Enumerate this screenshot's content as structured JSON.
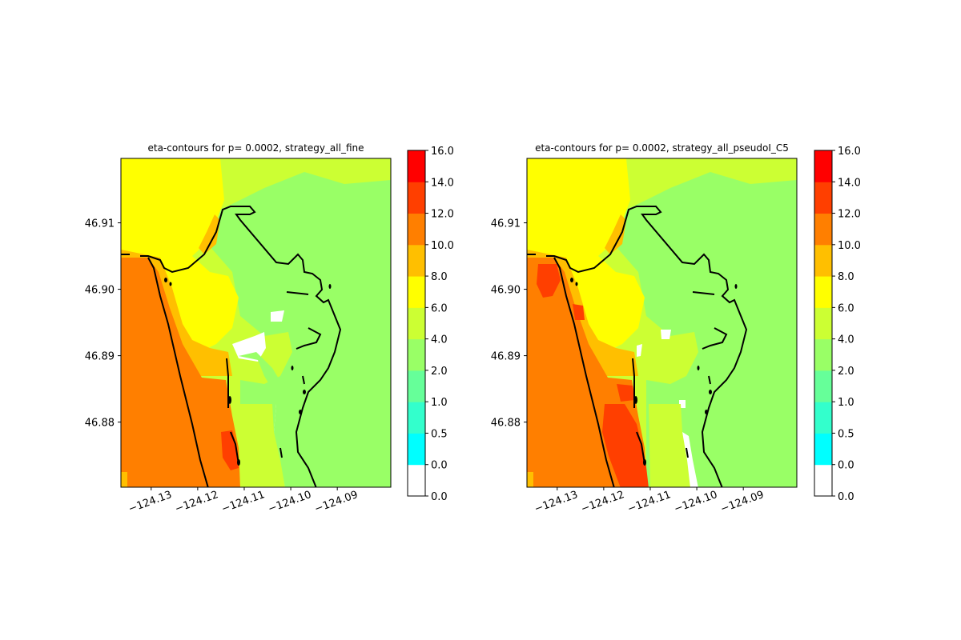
{
  "figure": {
    "colorbar": {
      "levels": [
        0.0,
        0.5,
        1.0,
        2.0,
        4.0,
        6.0,
        8.0,
        10.0,
        12.0,
        14.0,
        16.0
      ],
      "tick_labels": [
        "0.0",
        "0.0",
        "0.5",
        "1.0",
        "2.0",
        "4.0",
        "6.0",
        "8.0",
        "10.0",
        "12.0",
        "14.0",
        "16.0"
      ],
      "colors": [
        "#ffffff",
        "#00ffff",
        "#33ffcc",
        "#66ff99",
        "#99ff66",
        "#ccff33",
        "#ffff00",
        "#ffbf00",
        "#ff7f00",
        "#ff3f00",
        "#ff0000"
      ]
    }
  },
  "chart_data": [
    {
      "type": "heatmap",
      "title": "eta-contours for p= 0.0002, strategy_all_fine",
      "xlabel": "",
      "ylabel": "",
      "xlim": [
        -124.1365,
        -124.0785
      ],
      "ylim": [
        46.8702,
        46.9197
      ],
      "x_ticks": [
        -124.13,
        -124.12,
        -124.11,
        -124.1,
        -124.09
      ],
      "x_tick_labels": [
        "−124.13",
        "−124.12",
        "−124.11",
        "−124.10",
        "−124.09"
      ],
      "y_ticks": [
        46.88,
        46.89,
        46.9,
        46.91
      ],
      "y_tick_labels": [
        "46.88",
        "46.89",
        "46.90",
        "46.91"
      ],
      "grid": false,
      "colorbar_label": "",
      "variant": "fine"
    },
    {
      "type": "heatmap",
      "title": "eta-contours for p= 0.0002, strategy_all_pseudoI_C5",
      "xlabel": "",
      "ylabel": "",
      "xlim": [
        -124.1365,
        -124.0785
      ],
      "ylim": [
        46.8702,
        46.9197
      ],
      "x_ticks": [
        -124.13,
        -124.12,
        -124.11,
        -124.1,
        -124.09
      ],
      "x_tick_labels": [
        "−124.13",
        "−124.12",
        "−124.11",
        "−124.10",
        "−124.09"
      ],
      "y_ticks": [
        46.88,
        46.89,
        46.9,
        46.91
      ],
      "y_tick_labels": [
        "46.88",
        "46.89",
        "46.90",
        "46.91"
      ],
      "grid": false,
      "colorbar_label": "",
      "variant": "pseudo"
    }
  ]
}
